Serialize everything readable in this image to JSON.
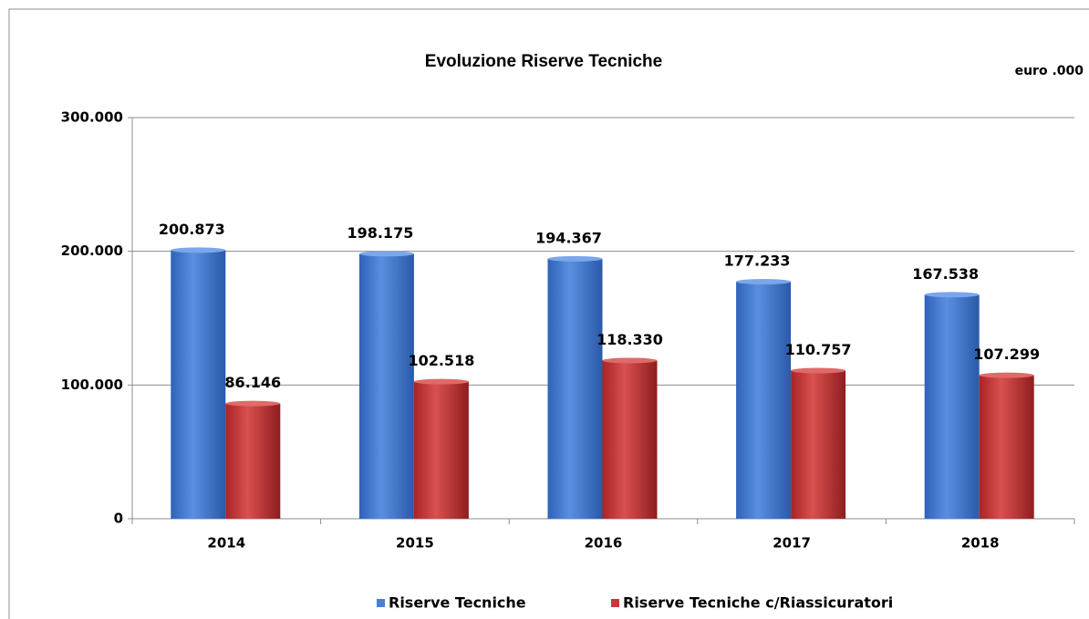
{
  "chart_data": {
    "type": "bar",
    "title": "Evoluzione Riserve Tecniche",
    "unit_note": "euro .000",
    "categories": [
      "2014",
      "2015",
      "2016",
      "2017",
      "2018"
    ],
    "series": [
      {
        "name": "Riserve Tecniche",
        "color": "#4a7fd4",
        "values": [
          200873,
          198175,
          194367,
          177233,
          167538
        ],
        "value_labels": [
          "200.873",
          "198.175",
          "194.367",
          "177.233",
          "167.538"
        ]
      },
      {
        "name": "Riserve Tecniche c/Riassicuratori",
        "color": "#c9383a",
        "values": [
          86146,
          102518,
          118330,
          110757,
          107299
        ],
        "value_labels": [
          "86.146",
          "102.518",
          "118.330",
          "110.757",
          "107.299"
        ]
      }
    ],
    "ylim": [
      0,
      300000
    ],
    "yticks": [
      0,
      {
        "value": 100000,
        "label": "100.000"
      },
      {
        "value": 200000,
        "label": "200.000"
      },
      {
        "value": 300000,
        "label": "300.000"
      }
    ],
    "grid": true,
    "legend": "bottom"
  }
}
